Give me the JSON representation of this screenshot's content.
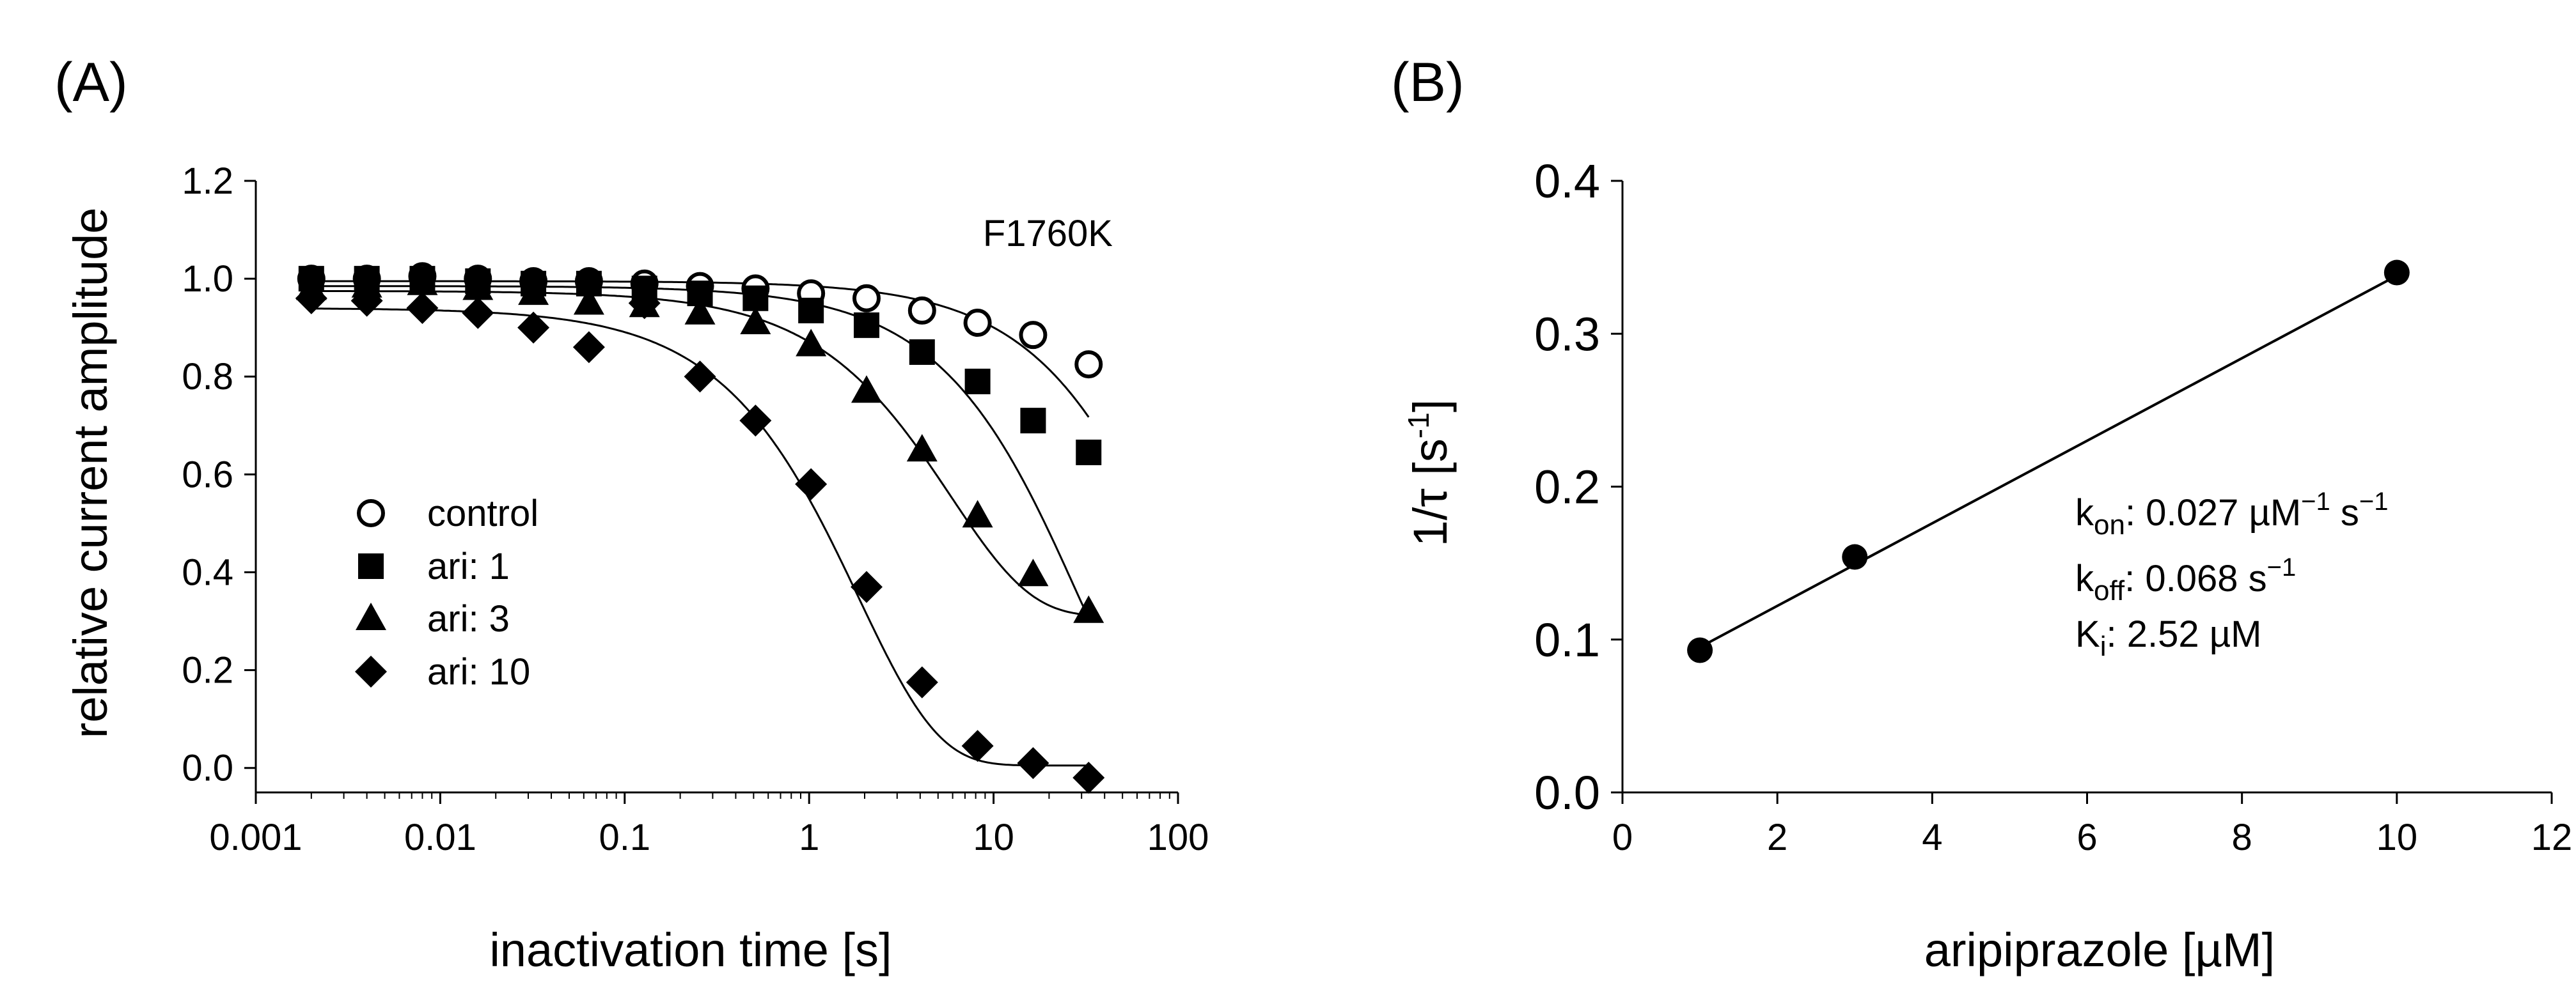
{
  "chart_data": [
    {
      "panel": "(A)",
      "type": "scatter",
      "x_scale": "log",
      "xlabel": "inactivation time [s]",
      "ylabel": "relative current amplitude",
      "xlim": [
        0.001,
        100
      ],
      "ylim": [
        -0.05,
        1.2
      ],
      "x_ticks": [
        {
          "value": 0.001,
          "label": "0.001"
        },
        {
          "value": 0.01,
          "label": "0.01"
        },
        {
          "value": 0.1,
          "label": "0.1"
        },
        {
          "value": 1,
          "label": "1"
        },
        {
          "value": 10,
          "label": "10"
        },
        {
          "value": 100,
          "label": "100"
        }
      ],
      "y_ticks": [
        {
          "value": 0.0,
          "label": "0.0"
        },
        {
          "value": 0.2,
          "label": "0.2"
        },
        {
          "value": 0.4,
          "label": "0.4"
        },
        {
          "value": 0.6,
          "label": "0.6"
        },
        {
          "value": 0.8,
          "label": "0.8"
        },
        {
          "value": 1.0,
          "label": "1.0"
        },
        {
          "value": 1.2,
          "label": "1.2"
        }
      ],
      "annotation": "F1760K",
      "grid": false,
      "legend_position": "lower-left",
      "x": [
        0.002,
        0.004,
        0.008,
        0.016,
        0.032,
        0.064,
        0.128,
        0.256,
        0.512,
        1.024,
        2.048,
        4.096,
        8.192,
        16.384,
        32.768
      ],
      "series": [
        {
          "name": "control",
          "marker": "open-circle",
          "values": [
            1.0,
            1.0,
            1.005,
            1.0,
            0.995,
            0.995,
            0.99,
            0.985,
            0.98,
            0.97,
            0.96,
            0.935,
            0.91,
            0.885,
            0.825
          ],
          "fit": {
            "a": 0.995,
            "tau": 100
          }
        },
        {
          "name": "ari: 1",
          "marker": "filled-square",
          "values": [
            1.0,
            1.0,
            1.0,
            0.995,
            0.99,
            0.99,
            0.98,
            0.97,
            0.96,
            0.935,
            0.905,
            0.85,
            0.79,
            0.71,
            0.645
          ],
          "fit": {
            "a": 0.985,
            "tau": 28
          }
        },
        {
          "name": "ari: 3",
          "marker": "filled-triangle",
          "values": [
            0.98,
            0.985,
            0.99,
            0.98,
            0.97,
            0.95,
            0.945,
            0.93,
            0.91,
            0.865,
            0.77,
            0.65,
            0.515,
            0.395,
            0.32
          ],
          "fit": {
            "a": 0.975,
            "b": 0.31,
            "k": 0.17
          }
        },
        {
          "name": "ari: 10",
          "marker": "filled-diamond",
          "values": [
            0.96,
            0.955,
            0.94,
            0.93,
            0.9,
            0.86,
            0.95,
            0.8,
            0.71,
            0.58,
            0.37,
            0.175,
            0.045,
            0.01,
            -0.02
          ],
          "fit": {
            "a": 0.94,
            "b": 0.005,
            "k": 0.54
          }
        }
      ]
    },
    {
      "panel": "(B)",
      "type": "scatter",
      "xlabel": "aripiprazole [µM]",
      "ylabel": "1/τ [s⁻¹]",
      "ylabel_main": "1/τ [s",
      "ylabel_sup": "-1",
      "ylabel_close": "]",
      "xlim": [
        0,
        12
      ],
      "ylim": [
        0,
        0.4
      ],
      "x_ticks": [
        {
          "value": 0,
          "label": "0"
        },
        {
          "value": 2,
          "label": "2"
        },
        {
          "value": 4,
          "label": "4"
        },
        {
          "value": 6,
          "label": "6"
        },
        {
          "value": 8,
          "label": "8"
        },
        {
          "value": 10,
          "label": "10"
        },
        {
          "value": 12,
          "label": "12"
        }
      ],
      "y_ticks": [
        {
          "value": 0.0,
          "label": "0.0"
        },
        {
          "value": 0.1,
          "label": "0.1"
        },
        {
          "value": 0.2,
          "label": "0.2"
        },
        {
          "value": 0.3,
          "label": "0.3"
        },
        {
          "value": 0.4,
          "label": "0.4"
        }
      ],
      "grid": false,
      "series": [
        {
          "name": "1/tau",
          "marker": "filled-circle",
          "x": [
            1,
            3,
            10
          ],
          "values": [
            0.093,
            0.154,
            0.34
          ]
        }
      ],
      "fit_line": {
        "x": [
          1,
          10
        ],
        "y": [
          0.095,
          0.338
        ]
      },
      "annotations": {
        "kon": {
          "k": "k",
          "sub": "on",
          "text": ": 0.027 µM",
          "sup": "−1",
          "text2": " s",
          "sup2": "−1"
        },
        "koff": {
          "k": "k",
          "sub": "off",
          "text": ": 0.068 s",
          "sup": "−1"
        },
        "ki": {
          "k": "K",
          "sub": "i",
          "text": ": 2.52 µM"
        }
      }
    }
  ]
}
